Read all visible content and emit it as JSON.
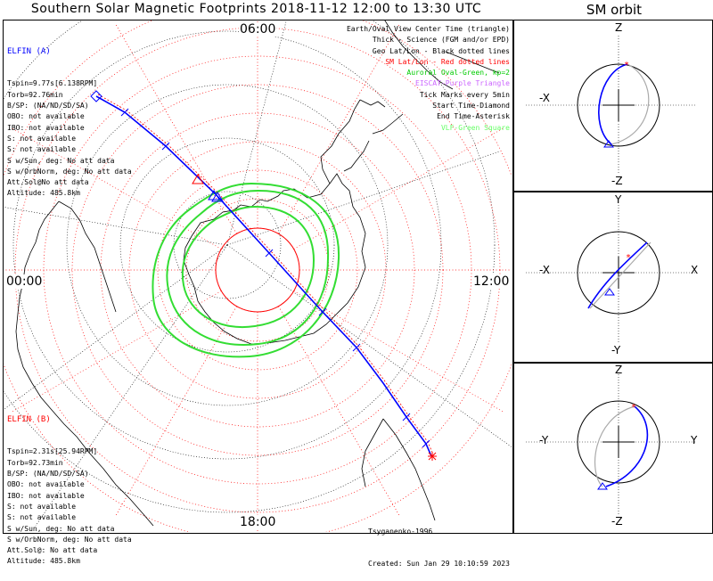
{
  "title": "Southern Solar Magnetic Footprints 2018-11-12 12:00 to 13:30 UTC",
  "orbit_title": "SM orbit",
  "clock_labels": {
    "top": "06:00",
    "left": "00:00",
    "right": "12:00",
    "bottom": "18:00"
  },
  "elfin_a": {
    "name": "ELFIN (A)",
    "color": "#0000ff",
    "lines": [
      "Tspin=9.77s[6.138RPM]",
      "Torb=92.76min",
      "B/SP: (NA/ND/SD/SA)",
      "OBO: not available",
      "IBO: not available",
      "S: not available",
      "S: not available",
      "S w/Sun, deg: No att data",
      "S w/OrbNorm, deg: No att data",
      "Att.Sol@No att data",
      "Altitude: 485.8km"
    ]
  },
  "elfin_b": {
    "name": "ELFIN (B)",
    "color": "#ff0000",
    "lines": [
      "Tspin=2.31s[25.94RPM]",
      "Torb=92.73min",
      "B/SP: (NA/ND/SD/SA)",
      "OBO: not available",
      "IBO: not available",
      "S: not available",
      "S: not available",
      "S w/Sun, deg: No att data",
      "S w/OrbNorm, deg: No att data",
      "Att.Sol@: No att data",
      "Altitude: 485.8km"
    ]
  },
  "legend": [
    {
      "text": "Earth/Oval View Center Time (triangle)",
      "color": "#000000"
    },
    {
      "text": "Thick - Science (FGM and/or EPD)",
      "color": "#000000"
    },
    {
      "text": "Geo Lat/Lon - Black dotted lines",
      "color": "#000000"
    },
    {
      "text": "SM Lat/Lon - Red dotted lines",
      "color": "#ff0000"
    },
    {
      "text": "Auroral Oval-Green, kp=2",
      "color": "#00cc00"
    },
    {
      "text": "EISCAT-Purple Triangle",
      "color": "#cc66ff"
    },
    {
      "text": "Tick Marks every 5min",
      "color": "#000000"
    },
    {
      "text": "Start Time-Diamond",
      "color": "#000000"
    },
    {
      "text": "End Time-Asterisk",
      "color": "#000000"
    },
    {
      "text": "VLF-Green Square",
      "color": "#66ff66"
    }
  ],
  "credits": {
    "author": "Tsyganenko-1996",
    "created": "Created: Sun Jan 29 10:10:59 2023"
  },
  "orbit_panels": [
    {
      "top": "Z",
      "bottom": "-Z",
      "left": "-X",
      "right": ""
    },
    {
      "top": "Y",
      "bottom": "-Y",
      "left": "-X",
      "right": "X"
    },
    {
      "top": "Z",
      "bottom": "-Z",
      "left": "-Y",
      "right": "Y"
    }
  ]
}
